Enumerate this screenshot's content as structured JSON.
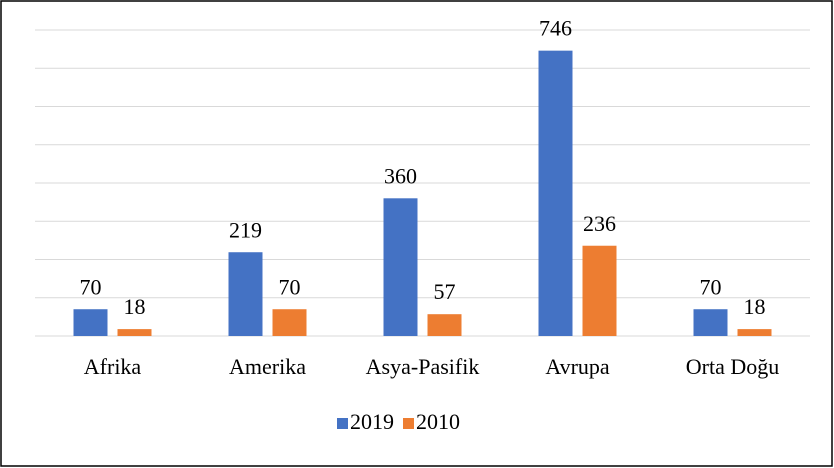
{
  "chart_data": {
    "type": "bar",
    "categories": [
      "Afrika",
      "Amerika",
      "Asya-Pasifik",
      "Avrupa",
      "Orta Doğu"
    ],
    "series": [
      {
        "name": "2019",
        "color": "#4472c4",
        "values": [
          70,
          219,
          360,
          746,
          70
        ]
      },
      {
        "name": "2010",
        "color": "#ed7d31",
        "values": [
          18,
          70,
          57,
          236,
          18
        ]
      }
    ],
    "ylim": [
      0,
      800
    ],
    "yticks": [
      0,
      100,
      200,
      300,
      400,
      500,
      600,
      700,
      800
    ],
    "grid": true,
    "legend": "bottom"
  }
}
